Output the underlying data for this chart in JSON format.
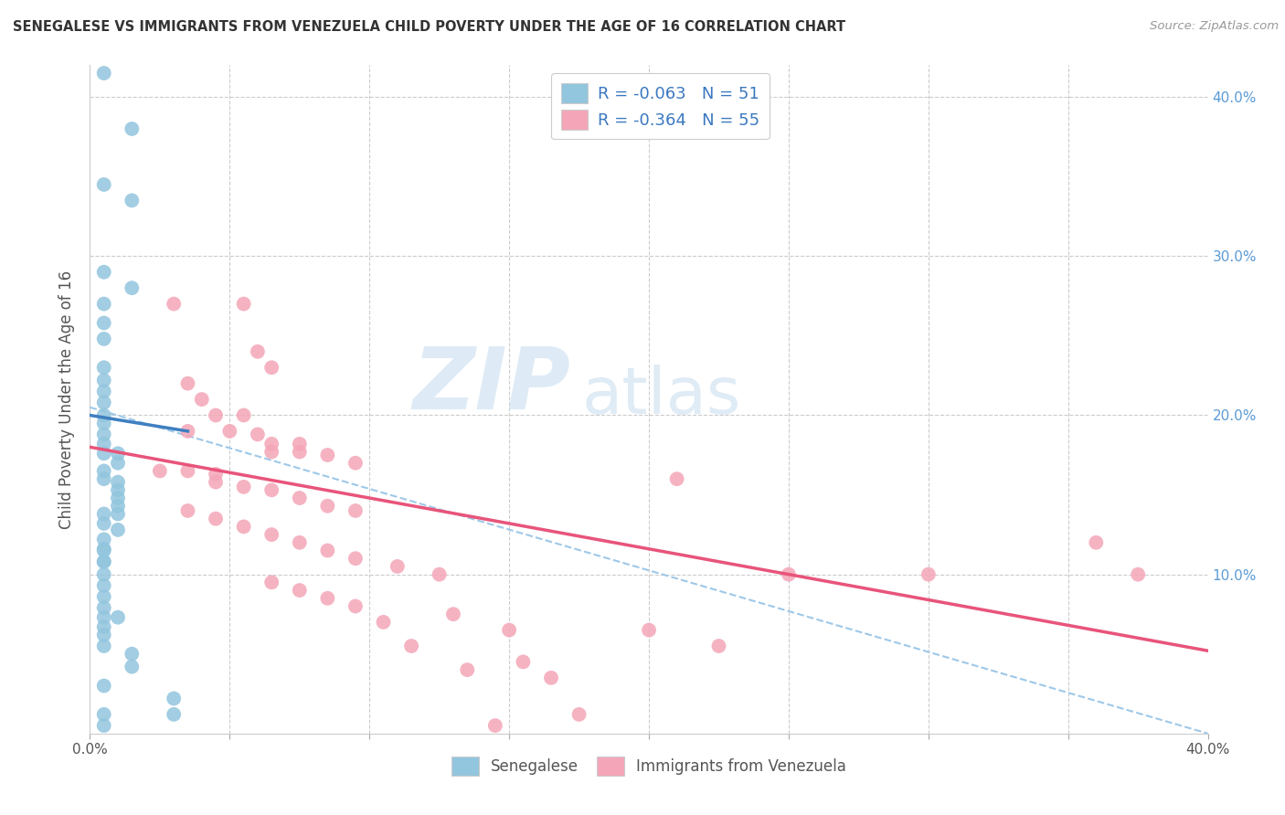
{
  "title": "SENEGALESE VS IMMIGRANTS FROM VENEZUELA CHILD POVERTY UNDER THE AGE OF 16 CORRELATION CHART",
  "source": "Source: ZipAtlas.com",
  "ylabel": "Child Poverty Under the Age of 16",
  "xlim": [
    0.0,
    0.4
  ],
  "ylim": [
    0.0,
    0.42
  ],
  "xticks": [
    0.0,
    0.05,
    0.1,
    0.15,
    0.2,
    0.25,
    0.3,
    0.35,
    0.4
  ],
  "yticks_right": [
    0.1,
    0.2,
    0.3,
    0.4
  ],
  "legend_r1": "R = -0.063",
  "legend_n1": "N = 51",
  "legend_r2": "R = -0.364",
  "legend_n2": "N = 55",
  "watermark_zip": "ZIP",
  "watermark_atlas": "atlas",
  "blue_color": "#92c5de",
  "pink_color": "#f4a6b8",
  "blue_scatter": [
    [
      0.005,
      0.415
    ],
    [
      0.015,
      0.38
    ],
    [
      0.005,
      0.345
    ],
    [
      0.015,
      0.335
    ],
    [
      0.005,
      0.29
    ],
    [
      0.015,
      0.28
    ],
    [
      0.005,
      0.27
    ],
    [
      0.005,
      0.258
    ],
    [
      0.005,
      0.248
    ],
    [
      0.005,
      0.23
    ],
    [
      0.005,
      0.222
    ],
    [
      0.005,
      0.215
    ],
    [
      0.005,
      0.208
    ],
    [
      0.005,
      0.2
    ],
    [
      0.005,
      0.195
    ],
    [
      0.005,
      0.188
    ],
    [
      0.005,
      0.182
    ],
    [
      0.005,
      0.176
    ],
    [
      0.01,
      0.176
    ],
    [
      0.01,
      0.17
    ],
    [
      0.005,
      0.165
    ],
    [
      0.005,
      0.16
    ],
    [
      0.01,
      0.158
    ],
    [
      0.01,
      0.153
    ],
    [
      0.01,
      0.148
    ],
    [
      0.01,
      0.143
    ],
    [
      0.01,
      0.138
    ],
    [
      0.005,
      0.138
    ],
    [
      0.005,
      0.132
    ],
    [
      0.01,
      0.128
    ],
    [
      0.005,
      0.122
    ],
    [
      0.005,
      0.115
    ],
    [
      0.005,
      0.108
    ],
    [
      0.005,
      0.1
    ],
    [
      0.005,
      0.093
    ],
    [
      0.005,
      0.086
    ],
    [
      0.005,
      0.079
    ],
    [
      0.005,
      0.073
    ],
    [
      0.01,
      0.073
    ],
    [
      0.005,
      0.067
    ],
    [
      0.005,
      0.062
    ],
    [
      0.005,
      0.116
    ],
    [
      0.005,
      0.108
    ],
    [
      0.005,
      0.055
    ],
    [
      0.015,
      0.05
    ],
    [
      0.015,
      0.042
    ],
    [
      0.005,
      0.03
    ],
    [
      0.03,
      0.022
    ],
    [
      0.005,
      0.012
    ],
    [
      0.03,
      0.012
    ],
    [
      0.005,
      0.005
    ]
  ],
  "pink_scatter": [
    [
      0.03,
      0.27
    ],
    [
      0.055,
      0.27
    ],
    [
      0.06,
      0.24
    ],
    [
      0.065,
      0.23
    ],
    [
      0.035,
      0.22
    ],
    [
      0.04,
      0.21
    ],
    [
      0.045,
      0.2
    ],
    [
      0.055,
      0.2
    ],
    [
      0.035,
      0.19
    ],
    [
      0.05,
      0.19
    ],
    [
      0.06,
      0.188
    ],
    [
      0.065,
      0.182
    ],
    [
      0.075,
      0.182
    ],
    [
      0.065,
      0.177
    ],
    [
      0.075,
      0.177
    ],
    [
      0.085,
      0.175
    ],
    [
      0.095,
      0.17
    ],
    [
      0.025,
      0.165
    ],
    [
      0.035,
      0.165
    ],
    [
      0.045,
      0.163
    ],
    [
      0.045,
      0.158
    ],
    [
      0.055,
      0.155
    ],
    [
      0.065,
      0.153
    ],
    [
      0.075,
      0.148
    ],
    [
      0.085,
      0.143
    ],
    [
      0.095,
      0.14
    ],
    [
      0.035,
      0.14
    ],
    [
      0.045,
      0.135
    ],
    [
      0.055,
      0.13
    ],
    [
      0.065,
      0.125
    ],
    [
      0.075,
      0.12
    ],
    [
      0.085,
      0.115
    ],
    [
      0.095,
      0.11
    ],
    [
      0.11,
      0.105
    ],
    [
      0.125,
      0.1
    ],
    [
      0.065,
      0.095
    ],
    [
      0.075,
      0.09
    ],
    [
      0.085,
      0.085
    ],
    [
      0.095,
      0.08
    ],
    [
      0.13,
      0.075
    ],
    [
      0.105,
      0.07
    ],
    [
      0.15,
      0.065
    ],
    [
      0.21,
      0.16
    ],
    [
      0.25,
      0.1
    ],
    [
      0.3,
      0.1
    ],
    [
      0.36,
      0.12
    ],
    [
      0.375,
      0.1
    ],
    [
      0.115,
      0.055
    ],
    [
      0.155,
      0.045
    ],
    [
      0.135,
      0.04
    ],
    [
      0.165,
      0.035
    ],
    [
      0.2,
      0.065
    ],
    [
      0.225,
      0.055
    ],
    [
      0.175,
      0.012
    ],
    [
      0.145,
      0.005
    ]
  ],
  "blue_line_x": [
    0.0,
    0.035
  ],
  "blue_line_y": [
    0.2,
    0.19
  ],
  "pink_line_x": [
    0.0,
    0.4
  ],
  "pink_line_y": [
    0.18,
    0.052
  ],
  "dashed_line_x": [
    0.0,
    0.4
  ],
  "dashed_line_y": [
    0.205,
    0.0
  ],
  "background_color": "#ffffff",
  "grid_color": "#cccccc",
  "right_tick_color": "#5b9bd5"
}
